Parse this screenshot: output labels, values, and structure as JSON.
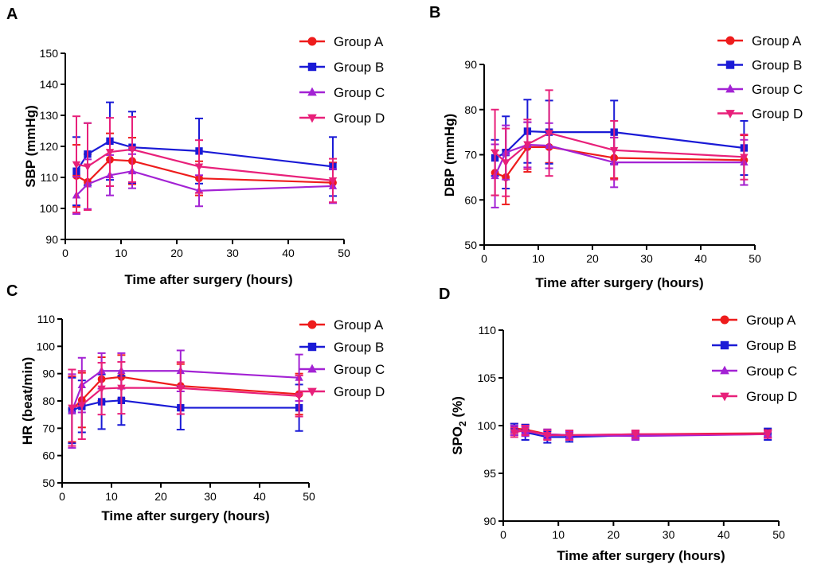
{
  "figure": {
    "series_colors": [
      "#ee1c1c",
      "#1a1ad6",
      "#a322d4",
      "#e8207a"
    ]
  },
  "chart_data": [
    {
      "panel": "A",
      "type": "line",
      "x_unit": "hours",
      "xlabel": "Time after surgery (hours)",
      "ylabel": "SBP (mmHg)",
      "xlim": [
        0,
        50
      ],
      "ylim": [
        90,
        150
      ],
      "xticks": [
        0,
        10,
        20,
        30,
        40,
        50
      ],
      "yticks": [
        90,
        100,
        110,
        120,
        130,
        140,
        150
      ],
      "x": [
        2,
        4,
        8,
        12,
        24,
        48
      ],
      "series": [
        {
          "name": "Group A",
          "marker": "circle",
          "values": [
            110.5,
            108.5,
            115.7,
            115.3,
            109.7,
            108.3
          ],
          "errors": [
            10,
            9,
            8.5,
            7.5,
            5.5,
            6.5
          ]
        },
        {
          "name": "Group B",
          "marker": "square",
          "values": [
            112,
            117.5,
            121.7,
            119.7,
            118.5,
            113.5
          ],
          "errors": [
            11,
            10,
            12.5,
            11.5,
            10.5,
            9.5
          ]
        },
        {
          "name": "Group C",
          "marker": "triangle-up",
          "values": [
            104.2,
            107.8,
            110.7,
            112,
            105.7,
            107.2
          ],
          "errors": [
            6,
            8,
            6.5,
            5.5,
            5,
            5.5
          ]
        },
        {
          "name": "Group D",
          "marker": "triangle-down",
          "values": [
            114.2,
            113.5,
            118.2,
            119,
            113.5,
            109
          ],
          "errors": [
            15.5,
            14,
            11,
            10.5,
            8.5,
            7
          ]
        }
      ]
    },
    {
      "panel": "B",
      "type": "line",
      "x_unit": "hours",
      "xlabel": "Time after surgery (hours)",
      "ylabel": "DBP (mmHg)",
      "xlim": [
        0,
        50
      ],
      "ylim": [
        50,
        90
      ],
      "xticks": [
        0,
        10,
        20,
        30,
        40,
        50
      ],
      "yticks": [
        50,
        60,
        70,
        80,
        90
      ],
      "x": [
        2,
        4,
        8,
        12,
        24,
        48
      ],
      "series": [
        {
          "name": "Group A",
          "marker": "circle",
          "values": [
            66,
            65,
            71.7,
            71.7,
            69.3,
            68.8
          ],
          "errors": [
            5,
            6,
            5.5,
            3.5,
            4.5,
            5.5
          ]
        },
        {
          "name": "Group B",
          "marker": "square",
          "values": [
            69.3,
            70.5,
            75.2,
            75,
            75,
            71.5
          ],
          "errors": [
            4,
            8,
            7,
            7,
            7,
            6
          ]
        },
        {
          "name": "Group C",
          "marker": "triangle-up",
          "values": [
            65.3,
            70.5,
            72.2,
            72,
            68.3,
            68.3
          ],
          "errors": [
            7,
            6,
            5,
            5,
            5.5,
            5
          ]
        },
        {
          "name": "Group D",
          "marker": "triangle-down",
          "values": [
            70.5,
            68.3,
            72.3,
            74.8,
            71,
            69.5
          ],
          "errors": [
            9.5,
            7.5,
            5.5,
            9.5,
            6.5,
            5
          ]
        }
      ]
    },
    {
      "panel": "C",
      "type": "line",
      "x_unit": "hours",
      "xlabel": "Time after surgery (hours)",
      "ylabel": "HR (beat/min)",
      "xlim": [
        0,
        50
      ],
      "ylim": [
        50,
        110
      ],
      "xticks": [
        0,
        10,
        20,
        30,
        40,
        50
      ],
      "yticks": [
        50,
        60,
        70,
        80,
        90,
        100,
        110
      ],
      "x": [
        2,
        4,
        8,
        12,
        24,
        48
      ],
      "series": [
        {
          "name": "Group A",
          "marker": "circle",
          "values": [
            77,
            80.3,
            88,
            88.8,
            85.5,
            82.5
          ],
          "errors": [
            12,
            10,
            8,
            8,
            8,
            7.5
          ]
        },
        {
          "name": "Group B",
          "marker": "square",
          "values": [
            76.5,
            78,
            79.7,
            80.2,
            77.5,
            77.5
          ],
          "errors": [
            12,
            9.5,
            10,
            9,
            8,
            8.5
          ]
        },
        {
          "name": "Group C",
          "marker": "triangle-up",
          "values": [
            76.3,
            85.8,
            91,
            91,
            91,
            88.5
          ],
          "errors": [
            13.5,
            10,
            6.5,
            6.5,
            7.5,
            8.5
          ]
        },
        {
          "name": "Group D",
          "marker": "triangle-down",
          "values": [
            77.5,
            78.5,
            84.5,
            84.8,
            84.7,
            81.8
          ],
          "errors": [
            14,
            12.5,
            9.5,
            9.5,
            9.5,
            7.5
          ]
        }
      ]
    },
    {
      "panel": "D",
      "type": "line",
      "x_unit": "hours",
      "xlabel": "Time after surgery (hours)",
      "ylabel_main": "SPO",
      "ylabel_sub": "2",
      "ylabel_unit": " (%)",
      "xlim": [
        0,
        50
      ],
      "ylim": [
        90,
        110
      ],
      "xticks": [
        0,
        10,
        20,
        30,
        40,
        50
      ],
      "yticks": [
        90,
        95,
        100,
        105,
        110
      ],
      "x": [
        2,
        4,
        8,
        12,
        24,
        48
      ],
      "series": [
        {
          "name": "Group A",
          "marker": "circle",
          "values": [
            99.7,
            99.6,
            99.1,
            99,
            99.1,
            99.2
          ],
          "errors": [
            0.5,
            0.5,
            0.5,
            0.5,
            0.4,
            0.4
          ]
        },
        {
          "name": "Group B",
          "marker": "square",
          "values": [
            99.6,
            99.3,
            98.8,
            98.8,
            99,
            99.1
          ],
          "errors": [
            0.6,
            0.8,
            0.6,
            0.5,
            0.4,
            0.6
          ]
        },
        {
          "name": "Group C",
          "marker": "triangle-up",
          "values": [
            99.5,
            99.4,
            99.1,
            99,
            98.9,
            99.1
          ],
          "errors": [
            0.5,
            0.5,
            0.5,
            0.4,
            0.4,
            0.4
          ]
        },
        {
          "name": "Group D",
          "marker": "triangle-down",
          "values": [
            99.3,
            99.5,
            99,
            99,
            99.1,
            99.1
          ],
          "errors": [
            0.5,
            0.5,
            0.5,
            0.5,
            0.4,
            0.4
          ]
        }
      ]
    }
  ]
}
